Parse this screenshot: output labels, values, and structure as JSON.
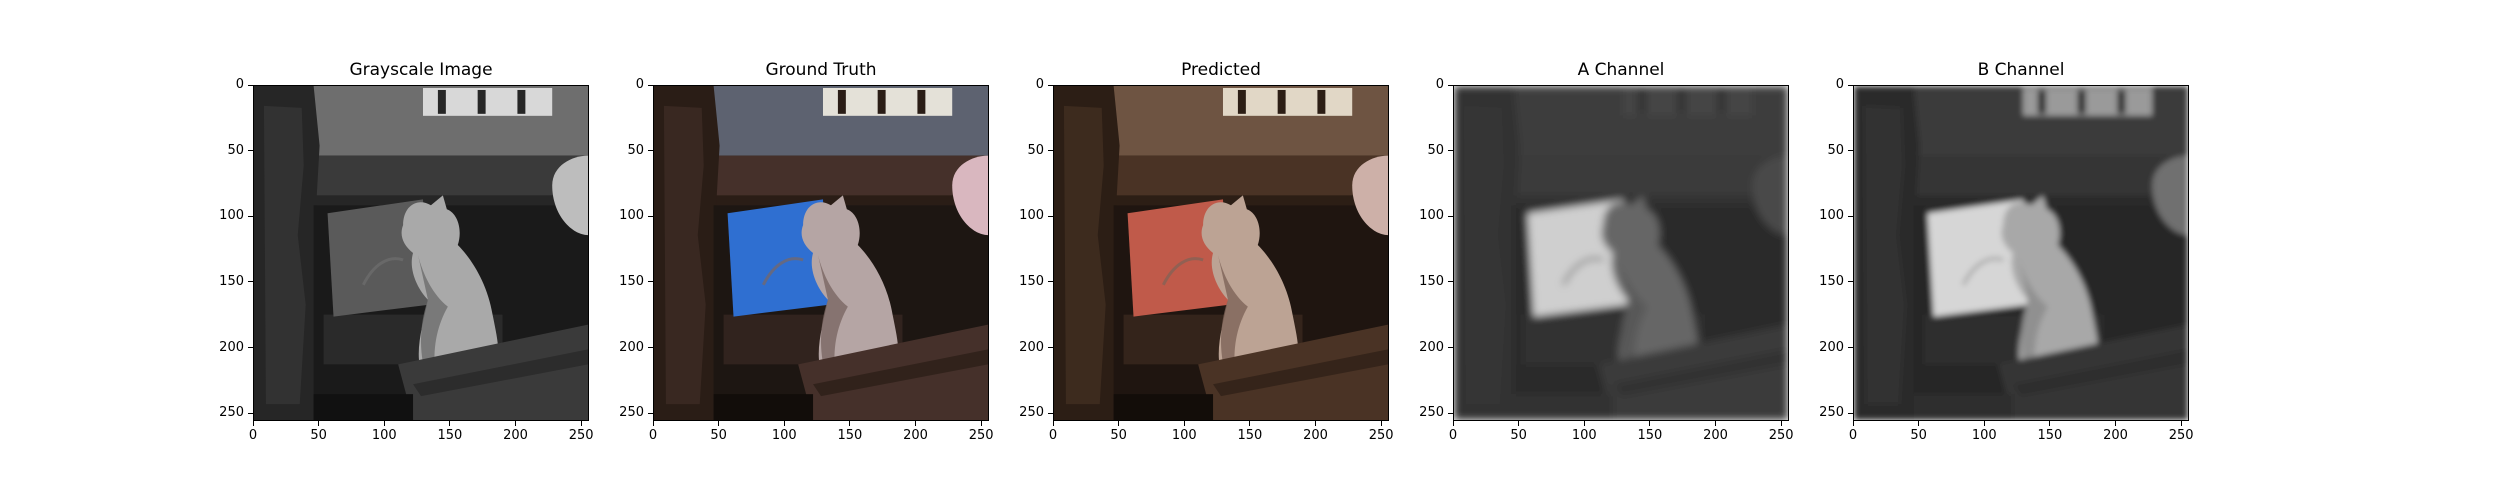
{
  "figure": {
    "panels": [
      {
        "title": "Grayscale Image",
        "variant": "gray"
      },
      {
        "title": "Ground Truth",
        "variant": "truth"
      },
      {
        "title": "Predicted",
        "variant": "pred"
      },
      {
        "title": "A Channel",
        "variant": "chanA"
      },
      {
        "title": "B Channel",
        "variant": "chanB"
      }
    ],
    "axes": {
      "y_ticks": [
        "0",
        "50",
        "100",
        "150",
        "200",
        "250"
      ],
      "x_ticks": [
        "0",
        "50",
        "100",
        "150",
        "200",
        "250"
      ],
      "y_values": [
        0,
        50,
        100,
        150,
        200,
        250
      ],
      "x_values": [
        0,
        50,
        100,
        150,
        200,
        250
      ],
      "extent": [
        0,
        256
      ]
    },
    "colors": {
      "frame": "#000000",
      "cushion_truth": "#2f6fd1",
      "cushion_pred": "#c05a4a"
    }
  }
}
